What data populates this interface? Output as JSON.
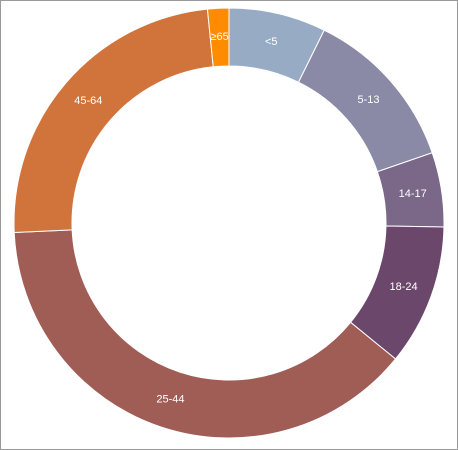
{
  "chart_data": {
    "type": "donut",
    "categories": [
      "<5",
      "5-13",
      "14-17",
      "18-24",
      "25-44",
      "45-64",
      "≥65"
    ],
    "values": [
      7.3,
      12.4,
      5.6,
      10.6,
      38.4,
      24.1,
      1.6
    ],
    "colors": [
      "#98abc5",
      "#8a89a6",
      "#7b6888",
      "#6b486b",
      "#a05d56",
      "#d0743c",
      "#ff8c00"
    ]
  }
}
